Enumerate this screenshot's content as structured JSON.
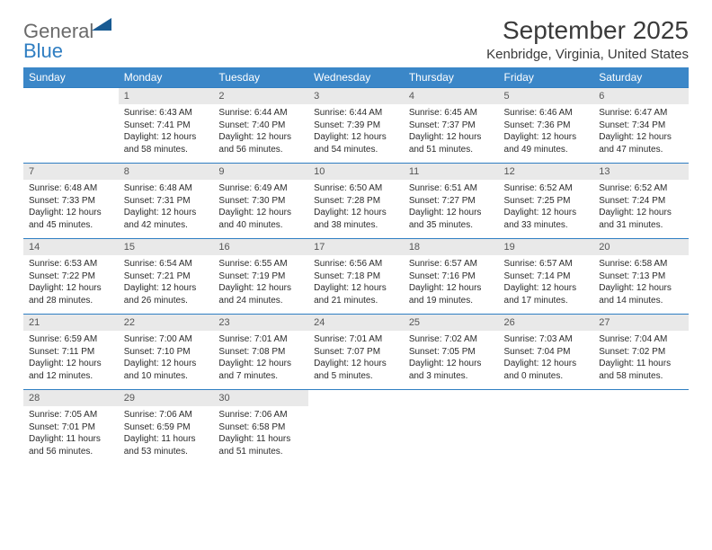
{
  "brand": {
    "word1": "General",
    "word2": "Blue"
  },
  "title": "September 2025",
  "location": "Kenbridge, Virginia, United States",
  "weekdays": [
    "Sunday",
    "Monday",
    "Tuesday",
    "Wednesday",
    "Thursday",
    "Friday",
    "Saturday"
  ],
  "colors": {
    "header_bg": "#3b87c8",
    "header_text": "#ffffff",
    "daynum_bg": "#e9e9e9",
    "row_border": "#2f7ec2",
    "logo_gray": "#6a6a6a",
    "logo_blue": "#2f7ec2"
  },
  "weeks": [
    [
      {
        "n": "",
        "sunrise": "",
        "sunset": "",
        "daylight": ""
      },
      {
        "n": "1",
        "sunrise": "6:43 AM",
        "sunset": "7:41 PM",
        "daylight": "12 hours and 58 minutes."
      },
      {
        "n": "2",
        "sunrise": "6:44 AM",
        "sunset": "7:40 PM",
        "daylight": "12 hours and 56 minutes."
      },
      {
        "n": "3",
        "sunrise": "6:44 AM",
        "sunset": "7:39 PM",
        "daylight": "12 hours and 54 minutes."
      },
      {
        "n": "4",
        "sunrise": "6:45 AM",
        "sunset": "7:37 PM",
        "daylight": "12 hours and 51 minutes."
      },
      {
        "n": "5",
        "sunrise": "6:46 AM",
        "sunset": "7:36 PM",
        "daylight": "12 hours and 49 minutes."
      },
      {
        "n": "6",
        "sunrise": "6:47 AM",
        "sunset": "7:34 PM",
        "daylight": "12 hours and 47 minutes."
      }
    ],
    [
      {
        "n": "7",
        "sunrise": "6:48 AM",
        "sunset": "7:33 PM",
        "daylight": "12 hours and 45 minutes."
      },
      {
        "n": "8",
        "sunrise": "6:48 AM",
        "sunset": "7:31 PM",
        "daylight": "12 hours and 42 minutes."
      },
      {
        "n": "9",
        "sunrise": "6:49 AM",
        "sunset": "7:30 PM",
        "daylight": "12 hours and 40 minutes."
      },
      {
        "n": "10",
        "sunrise": "6:50 AM",
        "sunset": "7:28 PM",
        "daylight": "12 hours and 38 minutes."
      },
      {
        "n": "11",
        "sunrise": "6:51 AM",
        "sunset": "7:27 PM",
        "daylight": "12 hours and 35 minutes."
      },
      {
        "n": "12",
        "sunrise": "6:52 AM",
        "sunset": "7:25 PM",
        "daylight": "12 hours and 33 minutes."
      },
      {
        "n": "13",
        "sunrise": "6:52 AM",
        "sunset": "7:24 PM",
        "daylight": "12 hours and 31 minutes."
      }
    ],
    [
      {
        "n": "14",
        "sunrise": "6:53 AM",
        "sunset": "7:22 PM",
        "daylight": "12 hours and 28 minutes."
      },
      {
        "n": "15",
        "sunrise": "6:54 AM",
        "sunset": "7:21 PM",
        "daylight": "12 hours and 26 minutes."
      },
      {
        "n": "16",
        "sunrise": "6:55 AM",
        "sunset": "7:19 PM",
        "daylight": "12 hours and 24 minutes."
      },
      {
        "n": "17",
        "sunrise": "6:56 AM",
        "sunset": "7:18 PM",
        "daylight": "12 hours and 21 minutes."
      },
      {
        "n": "18",
        "sunrise": "6:57 AM",
        "sunset": "7:16 PM",
        "daylight": "12 hours and 19 minutes."
      },
      {
        "n": "19",
        "sunrise": "6:57 AM",
        "sunset": "7:14 PM",
        "daylight": "12 hours and 17 minutes."
      },
      {
        "n": "20",
        "sunrise": "6:58 AM",
        "sunset": "7:13 PM",
        "daylight": "12 hours and 14 minutes."
      }
    ],
    [
      {
        "n": "21",
        "sunrise": "6:59 AM",
        "sunset": "7:11 PM",
        "daylight": "12 hours and 12 minutes."
      },
      {
        "n": "22",
        "sunrise": "7:00 AM",
        "sunset": "7:10 PM",
        "daylight": "12 hours and 10 minutes."
      },
      {
        "n": "23",
        "sunrise": "7:01 AM",
        "sunset": "7:08 PM",
        "daylight": "12 hours and 7 minutes."
      },
      {
        "n": "24",
        "sunrise": "7:01 AM",
        "sunset": "7:07 PM",
        "daylight": "12 hours and 5 minutes."
      },
      {
        "n": "25",
        "sunrise": "7:02 AM",
        "sunset": "7:05 PM",
        "daylight": "12 hours and 3 minutes."
      },
      {
        "n": "26",
        "sunrise": "7:03 AM",
        "sunset": "7:04 PM",
        "daylight": "12 hours and 0 minutes."
      },
      {
        "n": "27",
        "sunrise": "7:04 AM",
        "sunset": "7:02 PM",
        "daylight": "11 hours and 58 minutes."
      }
    ],
    [
      {
        "n": "28",
        "sunrise": "7:05 AM",
        "sunset": "7:01 PM",
        "daylight": "11 hours and 56 minutes."
      },
      {
        "n": "29",
        "sunrise": "7:06 AM",
        "sunset": "6:59 PM",
        "daylight": "11 hours and 53 minutes."
      },
      {
        "n": "30",
        "sunrise": "7:06 AM",
        "sunset": "6:58 PM",
        "daylight": "11 hours and 51 minutes."
      },
      {
        "n": "",
        "sunrise": "",
        "sunset": "",
        "daylight": ""
      },
      {
        "n": "",
        "sunrise": "",
        "sunset": "",
        "daylight": ""
      },
      {
        "n": "",
        "sunrise": "",
        "sunset": "",
        "daylight": ""
      },
      {
        "n": "",
        "sunrise": "",
        "sunset": "",
        "daylight": ""
      }
    ]
  ]
}
